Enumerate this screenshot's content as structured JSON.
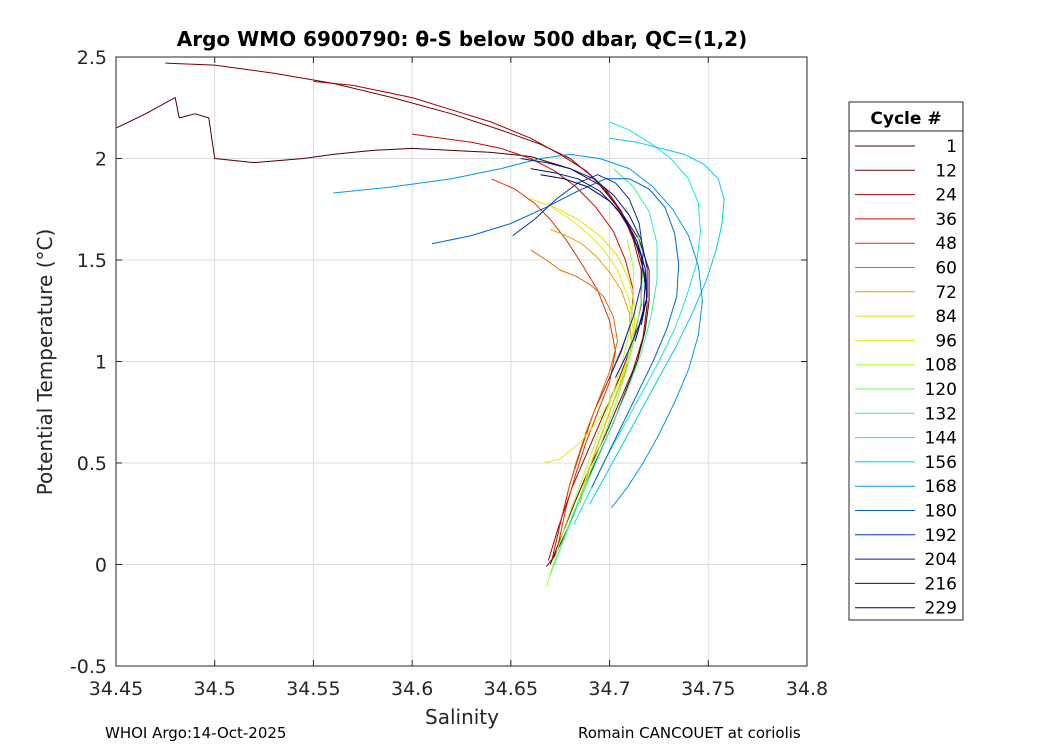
{
  "chart_data": {
    "type": "line",
    "title": "Argo WMO 6900790: θ-S below 500 dbar,  QC=(1,2)",
    "xlabel": "Salinity",
    "ylabel": "Potential Temperature (°C)",
    "xlim": [
      34.45,
      34.8
    ],
    "ylim": [
      -0.5,
      2.5
    ],
    "xticks": [
      "34.45",
      "34.5",
      "34.55",
      "34.6",
      "34.65",
      "34.7",
      "34.75",
      "34.8"
    ],
    "yticks": [
      "-0.5",
      "0",
      "0.5",
      "1",
      "1.5",
      "2",
      "2.5"
    ],
    "grid": true,
    "legend": {
      "title": "Cycle #",
      "placement": "right-outside",
      "entries": [
        {
          "label": "1",
          "color": "#4d0000"
        },
        {
          "label": "12",
          "color": "#7a0000"
        },
        {
          "label": "24",
          "color": "#a50000"
        },
        {
          "label": "36",
          "color": "#cc0d00"
        },
        {
          "label": "48",
          "color": "#e53300"
        },
        {
          "label": "60",
          "color": "#d97000"
        },
        {
          "label": "72",
          "color": "#e6a300"
        },
        {
          "label": "84",
          "color": "#f2d900"
        },
        {
          "label": "96",
          "color": "#d9ef1a"
        },
        {
          "label": "108",
          "color": "#a6ff33"
        },
        {
          "label": "120",
          "color": "#66ff66"
        },
        {
          "label": "132",
          "color": "#33f2a6"
        },
        {
          "label": "144",
          "color": "#1ae6d9"
        },
        {
          "label": "156",
          "color": "#00ccf2"
        },
        {
          "label": "168",
          "color": "#0099e6"
        },
        {
          "label": "180",
          "color": "#0066cc"
        },
        {
          "label": "192",
          "color": "#0033b3"
        },
        {
          "label": "204",
          "color": "#001a99"
        },
        {
          "label": "216",
          "color": "#000d80"
        },
        {
          "label": "229",
          "color": "#00006b"
        }
      ]
    },
    "series": [
      {
        "name": "1",
        "color": "#4d0000",
        "x": [
          34.45,
          34.465,
          34.48,
          34.482,
          34.49,
          34.497,
          34.5,
          34.52,
          34.545,
          34.56,
          34.58,
          34.6,
          34.62,
          34.64,
          34.66,
          34.68,
          34.695,
          34.705,
          34.715,
          34.72,
          34.72,
          34.718,
          34.714,
          34.708,
          34.702,
          34.695,
          34.688,
          34.682,
          34.676,
          34.672,
          34.668
        ],
        "y": [
          2.15,
          2.22,
          2.3,
          2.2,
          2.22,
          2.2,
          2.0,
          1.98,
          2.0,
          2.02,
          2.04,
          2.05,
          2.04,
          2.03,
          2.01,
          1.95,
          1.87,
          1.75,
          1.6,
          1.45,
          1.3,
          1.15,
          1.0,
          0.85,
          0.7,
          0.55,
          0.4,
          0.25,
          0.12,
          0.04,
          -0.01
        ]
      },
      {
        "name": "12",
        "color": "#7a0000",
        "x": [
          34.475,
          34.5,
          34.53,
          34.56,
          34.59,
          34.62,
          34.645,
          34.665,
          34.68,
          34.69,
          34.7,
          34.708,
          34.714,
          34.718,
          34.719,
          34.717,
          34.712,
          34.705,
          34.698,
          34.69,
          34.683,
          34.676,
          34.67
        ],
        "y": [
          2.47,
          2.46,
          2.42,
          2.37,
          2.3,
          2.22,
          2.14,
          2.07,
          2.0,
          1.92,
          1.82,
          1.7,
          1.56,
          1.42,
          1.28,
          1.12,
          0.96,
          0.8,
          0.64,
          0.48,
          0.32,
          0.15,
          0.0
        ]
      },
      {
        "name": "24",
        "color": "#a50000",
        "x": [
          34.55,
          34.57,
          34.6,
          34.62,
          34.64,
          34.66,
          34.675,
          34.688,
          34.698,
          34.706,
          34.712,
          34.716,
          34.716,
          34.712,
          34.705,
          34.697,
          34.689,
          34.681,
          34.674,
          34.669
        ],
        "y": [
          2.38,
          2.36,
          2.3,
          2.24,
          2.18,
          2.1,
          2.02,
          1.94,
          1.85,
          1.74,
          1.6,
          1.45,
          1.28,
          1.1,
          0.92,
          0.74,
          0.56,
          0.38,
          0.18,
          0.02
        ]
      },
      {
        "name": "36",
        "color": "#cc0d00",
        "x": [
          34.6,
          34.615,
          34.63,
          34.645,
          34.66,
          34.672,
          34.683,
          34.693,
          34.702,
          34.708,
          34.712,
          34.711,
          34.706,
          34.699,
          34.692,
          34.686,
          34.68,
          34.675,
          34.671
        ],
        "y": [
          2.12,
          2.1,
          2.08,
          2.05,
          2.0,
          1.94,
          1.86,
          1.76,
          1.64,
          1.5,
          1.35,
          1.2,
          1.05,
          0.9,
          0.75,
          0.58,
          0.4,
          0.2,
          0.03
        ]
      },
      {
        "name": "48",
        "color": "#e53300",
        "x": [
          34.64,
          34.652,
          34.662,
          34.67,
          34.678,
          34.686,
          34.694,
          34.7,
          34.703,
          34.7,
          34.694,
          34.688,
          34.683,
          34.678,
          34.674
        ],
        "y": [
          1.9,
          1.85,
          1.78,
          1.7,
          1.6,
          1.48,
          1.35,
          1.2,
          1.05,
          0.9,
          0.75,
          0.6,
          0.45,
          0.28,
          0.1
        ]
      },
      {
        "name": "60",
        "color": "#d97000",
        "x": [
          34.66,
          34.668,
          34.675,
          34.683,
          34.69,
          34.697,
          34.702,
          34.704,
          34.7,
          34.694,
          34.688,
          34.683,
          34.679
        ],
        "y": [
          1.55,
          1.5,
          1.45,
          1.42,
          1.38,
          1.32,
          1.22,
          1.1,
          0.95,
          0.8,
          0.65,
          0.5,
          0.36
        ]
      },
      {
        "name": "72",
        "color": "#e6a300",
        "x": [
          34.67,
          34.678,
          34.686,
          34.693,
          34.7,
          34.706,
          34.71,
          34.711,
          34.708,
          34.702,
          34.696,
          34.69,
          34.685
        ],
        "y": [
          1.65,
          1.62,
          1.58,
          1.52,
          1.44,
          1.35,
          1.24,
          1.1,
          0.95,
          0.8,
          0.64,
          0.48,
          0.3
        ]
      },
      {
        "name": "84",
        "color": "#f2d900",
        "x": [
          34.66,
          34.672,
          34.684,
          34.695,
          34.704,
          34.71,
          34.713,
          34.712,
          34.707,
          34.701,
          34.695,
          34.689,
          34.684
        ],
        "y": [
          1.8,
          1.76,
          1.7,
          1.62,
          1.52,
          1.4,
          1.26,
          1.1,
          0.94,
          0.78,
          0.62,
          0.46,
          0.3
        ]
      },
      {
        "name": "96",
        "color": "#d9ef1a",
        "x": [
          34.667,
          34.675,
          34.685,
          34.695,
          34.703,
          34.709,
          34.712,
          34.71,
          34.704,
          34.697,
          34.69,
          34.683,
          34.677,
          34.672,
          34.669
        ],
        "y": [
          0.5,
          0.52,
          0.6,
          0.72,
          0.86,
          1.0,
          1.15,
          1.3,
          1.45,
          1.55,
          1.62,
          1.68,
          1.72,
          1.75,
          1.78
        ]
      },
      {
        "name": "108",
        "color": "#a6ff33",
        "x": [
          34.668,
          34.672,
          34.677,
          34.683,
          34.689,
          34.695,
          34.701,
          34.706,
          34.71,
          34.712,
          34.712,
          34.709
        ],
        "y": [
          -0.11,
          0.02,
          0.18,
          0.34,
          0.5,
          0.66,
          0.82,
          0.98,
          1.14,
          1.3,
          1.46,
          1.6
        ]
      },
      {
        "name": "120",
        "color": "#66ff66",
        "x": [
          34.67,
          34.675,
          34.681,
          34.688,
          34.695,
          34.702,
          34.708,
          34.713,
          34.716,
          34.717,
          34.714,
          34.708
        ],
        "y": [
          -0.05,
          0.08,
          0.24,
          0.4,
          0.58,
          0.76,
          0.94,
          1.12,
          1.3,
          1.48,
          1.64,
          1.76
        ]
      },
      {
        "name": "132",
        "color": "#33f2a6",
        "x": [
          34.672,
          34.678,
          34.685,
          34.693,
          34.701,
          34.709,
          34.716,
          34.721,
          34.724,
          34.724,
          34.72,
          34.712,
          34.702
        ],
        "y": [
          0.0,
          0.15,
          0.32,
          0.5,
          0.68,
          0.86,
          1.04,
          1.22,
          1.4,
          1.58,
          1.74,
          1.86,
          1.95
        ]
      },
      {
        "name": "144",
        "color": "#1ae6d9",
        "x": [
          34.682,
          34.69,
          34.698,
          34.707,
          34.716,
          34.725,
          34.733,
          34.739,
          34.744,
          34.746,
          34.745,
          34.74,
          34.731,
          34.72,
          34.71,
          34.7
        ],
        "y": [
          0.2,
          0.36,
          0.52,
          0.68,
          0.84,
          1.0,
          1.16,
          1.32,
          1.48,
          1.64,
          1.78,
          1.9,
          2.0,
          2.08,
          2.14,
          2.18
        ]
      },
      {
        "name": "156",
        "color": "#00ccf2",
        "x": [
          34.69,
          34.698,
          34.707,
          34.716,
          34.725,
          34.734,
          34.742,
          34.749,
          34.754,
          34.757,
          34.758,
          34.755,
          34.748,
          34.738,
          34.726,
          34.714,
          34.7
        ],
        "y": [
          0.3,
          0.44,
          0.6,
          0.76,
          0.92,
          1.08,
          1.24,
          1.4,
          1.55,
          1.68,
          1.8,
          1.9,
          1.97,
          2.02,
          2.05,
          2.08,
          2.1
        ]
      },
      {
        "name": "168",
        "color": "#0099e6",
        "x": [
          34.56,
          34.59,
          34.62,
          34.645,
          34.665,
          34.68,
          34.695,
          34.71,
          34.722,
          34.732,
          34.74,
          34.745,
          34.747,
          34.745,
          34.74,
          34.733,
          34.725,
          34.717,
          34.709,
          34.701
        ],
        "y": [
          1.83,
          1.86,
          1.9,
          1.95,
          2.0,
          2.02,
          2.0,
          1.95,
          1.86,
          1.75,
          1.62,
          1.47,
          1.3,
          1.13,
          0.96,
          0.8,
          0.64,
          0.5,
          0.38,
          0.28
        ]
      },
      {
        "name": "180",
        "color": "#0066cc",
        "x": [
          34.61,
          34.63,
          34.65,
          34.668,
          34.684,
          34.698,
          34.71,
          34.72,
          34.728,
          34.733,
          34.735,
          34.734,
          34.729,
          34.722,
          34.714,
          34.706,
          34.698,
          34.691
        ],
        "y": [
          1.58,
          1.62,
          1.68,
          1.76,
          1.84,
          1.9,
          1.9,
          1.85,
          1.76,
          1.63,
          1.48,
          1.32,
          1.16,
          1.0,
          0.84,
          0.68,
          0.52,
          0.38
        ]
      },
      {
        "name": "192",
        "color": "#0033b3",
        "x": [
          34.651,
          34.662,
          34.673,
          34.684,
          34.694,
          34.703,
          34.71,
          34.715,
          34.717,
          34.716,
          34.712,
          34.706,
          34.7
        ],
        "y": [
          1.62,
          1.7,
          1.8,
          1.88,
          1.92,
          1.88,
          1.8,
          1.68,
          1.54,
          1.38,
          1.22,
          1.06,
          0.92
        ]
      },
      {
        "name": "204",
        "color": "#001a99",
        "x": [
          34.655,
          34.668,
          34.68,
          34.692,
          34.702,
          34.71,
          34.716,
          34.719,
          34.719,
          34.715,
          34.709,
          34.703
        ],
        "y": [
          2.0,
          1.98,
          1.95,
          1.9,
          1.82,
          1.72,
          1.6,
          1.46,
          1.32,
          1.18,
          1.04,
          0.92
        ]
      },
      {
        "name": "216",
        "color": "#000d80",
        "x": [
          34.66,
          34.672,
          34.684,
          34.695,
          34.704,
          34.711,
          34.716,
          34.718,
          34.717,
          34.713
        ],
        "y": [
          1.95,
          1.93,
          1.9,
          1.84,
          1.75,
          1.64,
          1.52,
          1.38,
          1.24,
          1.1
        ]
      },
      {
        "name": "229",
        "color": "#00006b",
        "x": [
          34.665,
          34.677,
          34.689,
          34.7,
          34.708,
          34.714,
          34.718,
          34.719,
          34.716
        ],
        "y": [
          1.92,
          1.9,
          1.86,
          1.79,
          1.7,
          1.59,
          1.46,
          1.32,
          1.18
        ]
      }
    ]
  },
  "footer": {
    "left": "WHOI Argo:14-Oct-2025",
    "right": "Romain CANCOUET at coriolis"
  }
}
